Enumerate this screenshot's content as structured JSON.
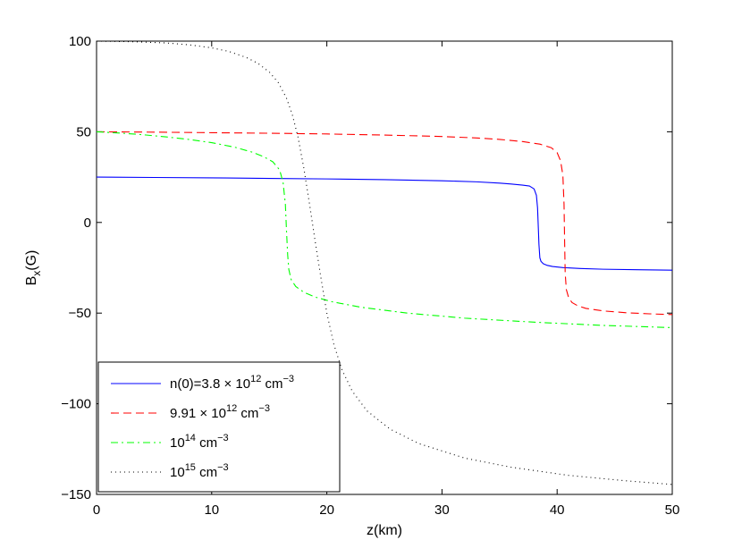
{
  "chart_data": {
    "type": "line",
    "xlabel": "z(km)",
    "ylabel": "B",
    "ylabel_sub": "x",
    "ylabel_unit": "(G)",
    "xlim": [
      0,
      50
    ],
    "ylim": [
      -150,
      100
    ],
    "xticks": [
      "0",
      "10",
      "20",
      "30",
      "40",
      "50"
    ],
    "yticks": [
      "100",
      "50",
      "0",
      "−50",
      "−100",
      "−150"
    ],
    "xtick_values": [
      0,
      10,
      20,
      30,
      40,
      50
    ],
    "ytick_values": [
      100,
      50,
      0,
      -50,
      -100,
      -150
    ],
    "grid": false,
    "legend_position": "bottom-left",
    "series": [
      {
        "name": "n(0)=3.8 × 10^12 cm^−3",
        "legend": {
          "base": "n(0)=3.8 × 10",
          "exp": "12",
          "unit": " cm",
          "unit_exp": "−3"
        },
        "style": "solid",
        "color": "#0000ff",
        "x": [
          0,
          5,
          10,
          15,
          20,
          25,
          30,
          33,
          35,
          36,
          37,
          37.6,
          38,
          38.2,
          38.3,
          38.38,
          38.42,
          38.5,
          38.6,
          38.8,
          39.1,
          39.6,
          40.5,
          42,
          44,
          47,
          50
        ],
        "y": [
          25,
          24.8,
          24.6,
          24.3,
          24,
          23.6,
          23,
          22.4,
          21.7,
          21.2,
          20.6,
          20.1,
          18.5,
          15,
          8,
          -5,
          -12,
          -19.5,
          -21.5,
          -22.8,
          -23.6,
          -24.3,
          -24.9,
          -25.4,
          -25.8,
          -26.1,
          -26.3
        ]
      },
      {
        "name": "9.91 × 10^12 cm^−3",
        "legend": {
          "base": "9.91 × 10",
          "exp": "12",
          "unit": " cm",
          "unit_exp": "−3"
        },
        "style": "dashed",
        "color": "#ff0000",
        "x": [
          0,
          5,
          10,
          15,
          20,
          25,
          30,
          33,
          35,
          37,
          38.5,
          39.5,
          40,
          40.3,
          40.5,
          40.6,
          40.65,
          40.7,
          40.8,
          41,
          41.3,
          41.8,
          42.5,
          44,
          46,
          48,
          50
        ],
        "y": [
          50,
          49.8,
          49.5,
          49.2,
          48.8,
          48.2,
          47.4,
          46.6,
          45.8,
          44.6,
          43.2,
          41.2,
          38.5,
          34,
          26,
          10,
          -10,
          -28,
          -37,
          -41.5,
          -44.2,
          -46,
          -47.4,
          -48.8,
          -49.8,
          -50.4,
          -50.8
        ]
      },
      {
        "name": "10^14 cm^−3",
        "legend": {
          "base": "10",
          "exp": "14",
          "unit": " cm",
          "unit_exp": "−3"
        },
        "style": "dashdot",
        "color": "#00ff00",
        "x": [
          0,
          2,
          4,
          6,
          8,
          10,
          12,
          13.5,
          14.5,
          15.3,
          15.9,
          16.2,
          16.4,
          16.5,
          16.6,
          16.7,
          16.9,
          17.3,
          18,
          19,
          20.5,
          23,
          27,
          32,
          38,
          44,
          50
        ],
        "y": [
          50,
          49.3,
          48.4,
          47.2,
          45.8,
          44,
          41.5,
          38.8,
          36.3,
          33.5,
          29,
          22,
          10,
          -5,
          -18,
          -26,
          -31.5,
          -35.3,
          -38.5,
          -41.2,
          -43.8,
          -46.8,
          -50,
          -52.8,
          -55,
          -56.8,
          -58
        ]
      },
      {
        "name": "10^15 cm^−3",
        "legend": {
          "base": "10",
          "exp": "15",
          "unit": " cm",
          "unit_exp": "−3"
        },
        "style": "dotted",
        "color": "#000000",
        "x": [
          0,
          3,
          6,
          8,
          10,
          11.5,
          13,
          14,
          15,
          15.8,
          16.5,
          17,
          17.5,
          18,
          18.5,
          19,
          19.5,
          20,
          20.6,
          21.3,
          22.2,
          23.5,
          25.5,
          28,
          32,
          36,
          41,
          46,
          50
        ],
        "y": [
          100,
          99.7,
          99,
          98,
          96.3,
          94.3,
          91,
          87.8,
          83,
          77,
          68.5,
          59.5,
          47,
          30,
          10,
          -11,
          -31,
          -50,
          -67,
          -81,
          -93,
          -104,
          -114,
          -122,
          -130,
          -135,
          -139.5,
          -142.5,
          -144.5
        ]
      }
    ]
  }
}
